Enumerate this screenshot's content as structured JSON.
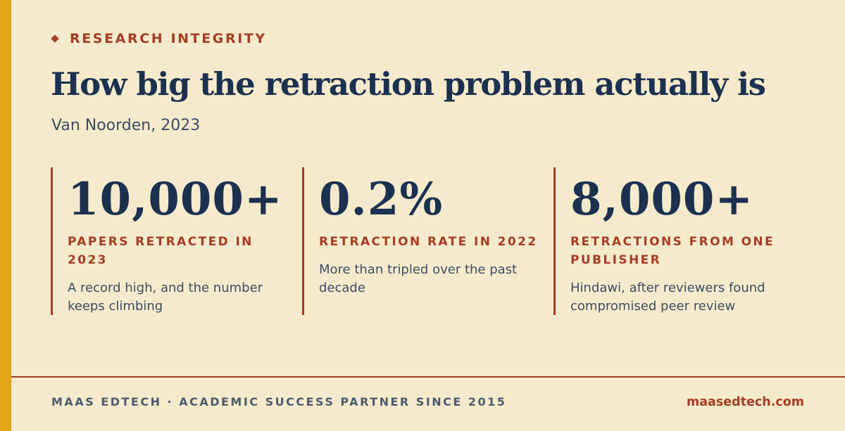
{
  "colors": {
    "background": "#f5ebcc",
    "accent_bar": "#e4a417",
    "brand_red": "#a63d24",
    "navy": "#1c3050",
    "body_text": "#3c4c63"
  },
  "header": {
    "eyebrow_icon": "diamond-bullet",
    "eyebrow": "RESEARCH INTEGRITY",
    "title": "How big the retraction problem actually is",
    "subtitle": "Van Noorden, 2023"
  },
  "stats": [
    {
      "value": "10,000+",
      "label": "PAPERS RETRACTED IN 2023",
      "description": "A record high, and the number keeps climbing"
    },
    {
      "value": "0.2%",
      "label": "RETRACTION RATE IN 2022",
      "description": "More than tripled over the past decade"
    },
    {
      "value": "8,000+",
      "label": "RETRACTIONS FROM ONE PUBLISHER",
      "description": "Hindawi, after reviewers found compromised peer review"
    }
  ],
  "footer": {
    "tagline": "MAAS EDTECH · ACADEMIC SUCCESS PARTNER SINCE 2015",
    "website": "maasedtech.com"
  }
}
